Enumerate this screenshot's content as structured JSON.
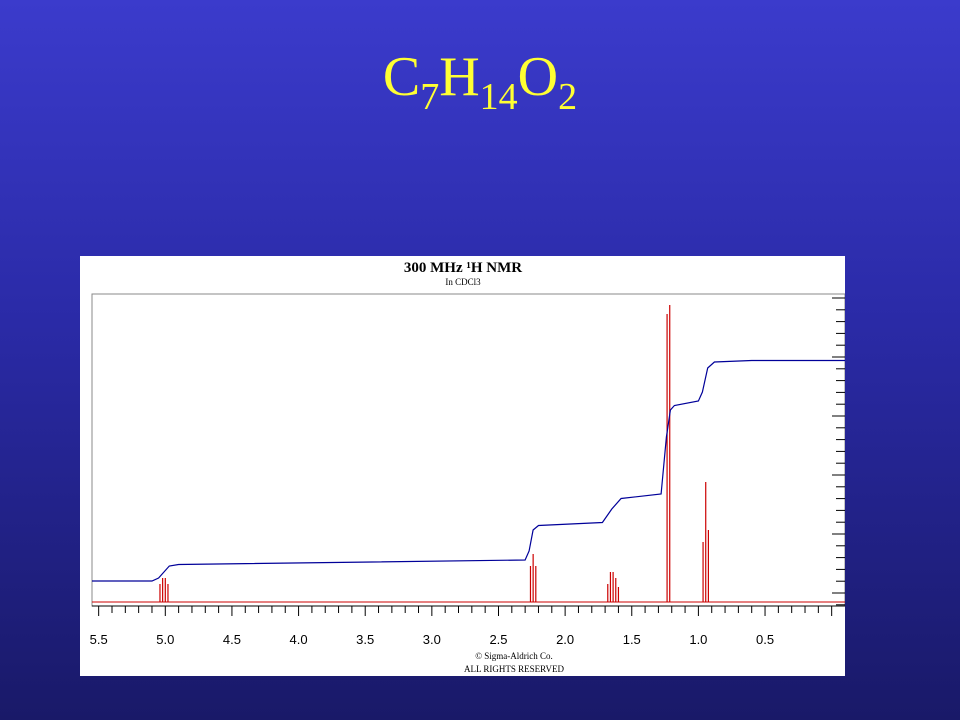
{
  "slide": {
    "formula": {
      "C": "C",
      "C_sub": "7",
      "H": "H",
      "H_sub": "14",
      "O": "O",
      "O_sub": "2"
    }
  },
  "chart_data": {
    "type": "line",
    "title": "300 MHz ¹H NMR",
    "subtitle": "In CDCl3",
    "credit_line1": "© Sigma-Aldrich Co.",
    "credit_line2": "ALL RIGHTS RESERVED",
    "xlabel": "",
    "ylabel": "",
    "xlim": [
      5.55,
      -0.1
    ],
    "x_reversed": true,
    "x_ticks": [
      "5.5",
      "5.0",
      "4.5",
      "4.0",
      "3.5",
      "3.0",
      "2.5",
      "2.0",
      "1.5",
      "1.0",
      "0.5"
    ],
    "x_tick_values": [
      5.5,
      5.0,
      4.5,
      4.0,
      3.5,
      3.0,
      2.5,
      2.0,
      1.5,
      1.0,
      0.5
    ],
    "ylim": [
      0,
      1
    ],
    "colors": {
      "spectrum": "#cc0000",
      "integral": "#000099",
      "axis": "#000000"
    },
    "series": [
      {
        "kind": "spectrum",
        "peaks": [
          {
            "shift": 5.04,
            "height": 0.06
          },
          {
            "shift": 5.02,
            "height": 0.08
          },
          {
            "shift": 5.0,
            "height": 0.08
          },
          {
            "shift": 4.98,
            "height": 0.06
          },
          {
            "shift": 2.26,
            "height": 0.12
          },
          {
            "shift": 2.24,
            "height": 0.16
          },
          {
            "shift": 2.22,
            "height": 0.12
          },
          {
            "shift": 1.68,
            "height": 0.06
          },
          {
            "shift": 1.66,
            "height": 0.1
          },
          {
            "shift": 1.64,
            "height": 0.1
          },
          {
            "shift": 1.62,
            "height": 0.08
          },
          {
            "shift": 1.6,
            "height": 0.05
          },
          {
            "shift": 1.235,
            "height": 0.96
          },
          {
            "shift": 1.215,
            "height": 0.99
          },
          {
            "shift": 0.965,
            "height": 0.2
          },
          {
            "shift": 0.945,
            "height": 0.4
          },
          {
            "shift": 0.925,
            "height": 0.24
          }
        ]
      },
      {
        "kind": "integral",
        "points": [
          [
            5.55,
            0.07
          ],
          [
            5.1,
            0.07
          ],
          [
            5.05,
            0.08
          ],
          [
            4.97,
            0.12
          ],
          [
            4.9,
            0.125
          ],
          [
            2.3,
            0.14
          ],
          [
            2.27,
            0.17
          ],
          [
            2.24,
            0.24
          ],
          [
            2.2,
            0.255
          ],
          [
            1.72,
            0.265
          ],
          [
            1.65,
            0.31
          ],
          [
            1.58,
            0.345
          ],
          [
            1.28,
            0.36
          ],
          [
            1.24,
            0.55
          ],
          [
            1.21,
            0.64
          ],
          [
            1.18,
            0.655
          ],
          [
            1.0,
            0.67
          ],
          [
            0.97,
            0.7
          ],
          [
            0.93,
            0.78
          ],
          [
            0.88,
            0.8
          ],
          [
            0.6,
            0.805
          ],
          [
            -0.1,
            0.805
          ]
        ]
      }
    ]
  }
}
